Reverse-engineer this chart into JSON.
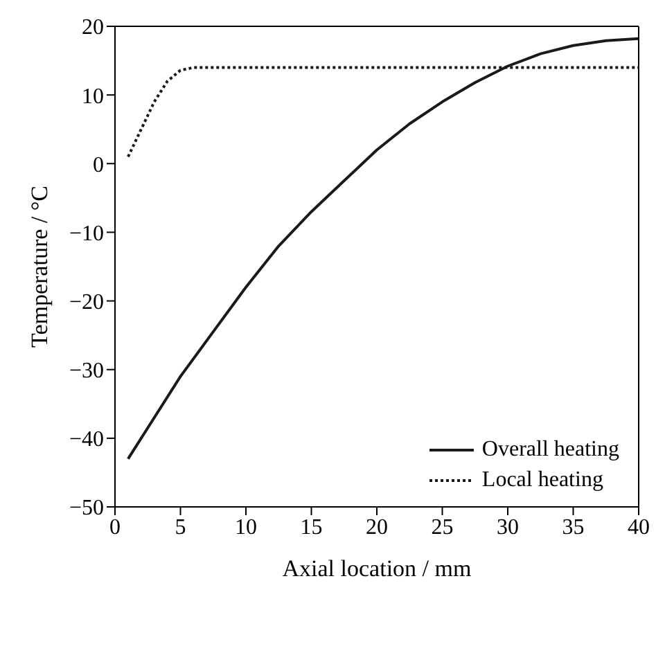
{
  "chart_data": {
    "type": "line",
    "xlabel": "Axial location / mm",
    "ylabel": "Temperature / °C",
    "xlim": [
      0,
      40
    ],
    "xticks": [
      0,
      5,
      10,
      15,
      20,
      25,
      30,
      35,
      40
    ],
    "ylim": [
      -50,
      20
    ],
    "yticks": [
      -50,
      -40,
      -30,
      -20,
      -10,
      0,
      10,
      20
    ],
    "legend": "bottom right",
    "marker": "none",
    "series": [
      {
        "name": "Overall heating",
        "color": "#1a1a1a",
        "line_style": "solid",
        "x": [
          1,
          2.5,
          5,
          7.5,
          10,
          12.5,
          15,
          17.5,
          20,
          22.5,
          25,
          27.5,
          30,
          32.5,
          35,
          37.5,
          40
        ],
        "values": [
          -43,
          -38.5,
          -31,
          -24.5,
          -18,
          -12,
          -7,
          -2.5,
          2,
          5.8,
          9,
          11.8,
          14.2,
          16,
          17.2,
          17.9,
          18.2
        ]
      },
      {
        "name": "Local heating",
        "color": "#1a1a1a",
        "line_style": "dotted",
        "x": [
          1,
          2,
          3,
          4,
          5,
          6,
          10,
          20,
          30,
          40
        ],
        "values": [
          1,
          5,
          9,
          12,
          13.6,
          14,
          14,
          14,
          14,
          14
        ]
      }
    ]
  }
}
